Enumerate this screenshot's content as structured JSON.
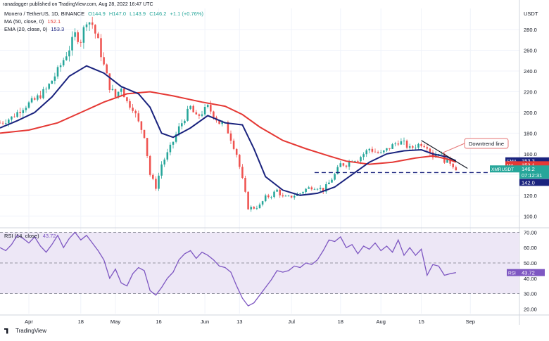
{
  "attribution": "ranadagger published on TradingView.com, Aug 28, 2022 16:47 UTC",
  "legend": {
    "symbol": "Monero / TetherUS, 1D, BINANCE",
    "o": "O144.9",
    "h": "H147.0",
    "l": "L143.9",
    "c": "C146.2",
    "chg": "+1.1 (+0.76%)",
    "ma_label": "MA (50, close, 0)",
    "ma_value": "152.1",
    "ema_label": "EMA (20, close, 0)",
    "ema_value": "153.3",
    "rsi_label": "RSI (14, close)",
    "rsi_value": "43.72"
  },
  "footer_logo": "TradingView",
  "colors": {
    "up": "#26a69a",
    "down": "#ef5350",
    "ma": "#e53935",
    "ema": "#1a237e",
    "rsi": "#7e57c2",
    "rsi_band": "#ede7f6",
    "trendline": "#131722",
    "support": "#1a237e",
    "callout": "#e57373"
  },
  "chart_data": [
    {
      "type": "candlestick",
      "title": "Monero / TetherUS, 1D, BINANCE",
      "currency": "USDT",
      "ylim": [
        90,
        295
      ],
      "yticks": [
        100,
        120,
        140,
        160,
        180,
        200,
        220,
        240,
        260,
        280
      ],
      "x_labels": [
        {
          "label": "Apr",
          "day": 10
        },
        {
          "label": "18",
          "day": 28
        },
        {
          "label": "May",
          "day": 40
        },
        {
          "label": "16",
          "day": 55
        },
        {
          "label": "Jun",
          "day": 71
        },
        {
          "label": "13",
          "day": 83
        },
        {
          "label": "Jul",
          "day": 101
        },
        {
          "label": "18",
          "day": 118
        },
        {
          "label": "Aug",
          "day": 132
        },
        {
          "label": "15",
          "day": 146
        },
        {
          "label": "Sep",
          "day": 163
        }
      ],
      "x_range": [
        0,
        180
      ],
      "series": [
        {
          "name": "MA (50, close, 0)",
          "line": [
            [
              0,
              180
            ],
            [
              10,
              183
            ],
            [
              20,
              190
            ],
            [
              28,
              200
            ],
            [
              36,
              210
            ],
            [
              44,
              218
            ],
            [
              52,
              220
            ],
            [
              60,
              216
            ],
            [
              70,
              210
            ],
            [
              78,
              206
            ],
            [
              84,
              198
            ],
            [
              90,
              186
            ],
            [
              98,
              173
            ],
            [
              106,
              165
            ],
            [
              114,
              158
            ],
            [
              120,
              153
            ],
            [
              128,
              150
            ],
            [
              136,
              152
            ],
            [
              144,
              156
            ],
            [
              150,
              158
            ],
            [
              155,
              155
            ],
            [
              158,
              152.1
            ]
          ]
        },
        {
          "name": "EMA (20, close, 0)",
          "line": [
            [
              0,
              185
            ],
            [
              6,
              192
            ],
            [
              12,
              200
            ],
            [
              18,
              215
            ],
            [
              24,
              235
            ],
            [
              30,
              245
            ],
            [
              36,
              238
            ],
            [
              42,
              225
            ],
            [
              48,
              218
            ],
            [
              52,
              205
            ],
            [
              56,
              180
            ],
            [
              60,
              176
            ],
            [
              66,
              185
            ],
            [
              72,
              197
            ],
            [
              78,
              190
            ],
            [
              84,
              188
            ],
            [
              88,
              165
            ],
            [
              92,
              138
            ],
            [
              98,
              125
            ],
            [
              104,
              120
            ],
            [
              110,
              122
            ],
            [
              116,
              128
            ],
            [
              122,
              140
            ],
            [
              128,
              152
            ],
            [
              134,
              160
            ],
            [
              140,
              163
            ],
            [
              146,
              164
            ],
            [
              150,
              160
            ],
            [
              155,
              157
            ],
            [
              158,
              153.3
            ]
          ]
        }
      ],
      "ohlc_pivots": [
        [
          0,
          190
        ],
        [
          4,
          195
        ],
        [
          8,
          205
        ],
        [
          12,
          212
        ],
        [
          16,
          222
        ],
        [
          20,
          240
        ],
        [
          24,
          262
        ],
        [
          26,
          275
        ],
        [
          28,
          270
        ],
        [
          30,
          290
        ],
        [
          32,
          285
        ],
        [
          34,
          268
        ],
        [
          36,
          245
        ],
        [
          38,
          225
        ],
        [
          40,
          215
        ],
        [
          42,
          225
        ],
        [
          44,
          210
        ],
        [
          46,
          205
        ],
        [
          48,
          190
        ],
        [
          50,
          178
        ],
        [
          52,
          140
        ],
        [
          54,
          128
        ],
        [
          56,
          150
        ],
        [
          58,
          160
        ],
        [
          60,
          172
        ],
        [
          62,
          185
        ],
        [
          64,
          195
        ],
        [
          66,
          205
        ],
        [
          68,
          195
        ],
        [
          70,
          200
        ],
        [
          72,
          205
        ],
        [
          74,
          198
        ],
        [
          76,
          190
        ],
        [
          78,
          188
        ],
        [
          80,
          175
        ],
        [
          82,
          160
        ],
        [
          84,
          135
        ],
        [
          86,
          108
        ],
        [
          88,
          108
        ],
        [
          90,
          110
        ],
        [
          92,
          118
        ],
        [
          94,
          120
        ],
        [
          96,
          125
        ],
        [
          98,
          118
        ],
        [
          100,
          118
        ],
        [
          102,
          120
        ],
        [
          104,
          122
        ],
        [
          106,
          126
        ],
        [
          108,
          128
        ],
        [
          110,
          128
        ],
        [
          112,
          125
        ],
        [
          114,
          132
        ],
        [
          116,
          140
        ],
        [
          118,
          150
        ],
        [
          120,
          150
        ],
        [
          122,
          155
        ],
        [
          124,
          155
        ],
        [
          126,
          160
        ],
        [
          128,
          165
        ],
        [
          130,
          162
        ],
        [
          132,
          160
        ],
        [
          134,
          164
        ],
        [
          136,
          168
        ],
        [
          138,
          172
        ],
        [
          140,
          170
        ],
        [
          142,
          165
        ],
        [
          144,
          168
        ],
        [
          146,
          170
        ],
        [
          148,
          168
        ],
        [
          150,
          158
        ],
        [
          152,
          162
        ],
        [
          154,
          154
        ],
        [
          156,
          152
        ],
        [
          158,
          146.2
        ]
      ],
      "annotations": [
        {
          "type": "trendline",
          "label": "Downtrend line",
          "from": [
            146,
            173
          ],
          "to": [
            162,
            146
          ]
        },
        {
          "type": "support",
          "value": 142.0,
          "from_day": 109,
          "to_day": 170
        }
      ],
      "price_tags": [
        {
          "name": "EMA",
          "value": "153.3",
          "color": "#1a237e",
          "y": 153.3
        },
        {
          "name": "MA",
          "value": "152.1",
          "color": "#e53935",
          "y": 149.5
        },
        {
          "name": "XMRUSDT",
          "value": "146.2",
          "color": "#26a69a",
          "y": 145.5
        },
        {
          "name": "time",
          "value": "07:12:31",
          "color": "#26a69a",
          "y": 139.5
        },
        {
          "name": "support",
          "value": "142.0",
          "color": "#1a237e",
          "y": 132.5
        }
      ]
    },
    {
      "type": "line",
      "title": "RSI (14, close)",
      "ylim": [
        17,
        72
      ],
      "yticks": [
        20,
        30,
        40,
        50,
        60,
        70
      ],
      "bands": {
        "upper": 70,
        "middle": 50,
        "lower": 30
      },
      "series": [
        {
          "name": "RSI",
          "values": [
            [
              0,
              60
            ],
            [
              2,
              58
            ],
            [
              4,
              62
            ],
            [
              6,
              68
            ],
            [
              8,
              66
            ],
            [
              10,
              63
            ],
            [
              12,
              67
            ],
            [
              14,
              61
            ],
            [
              16,
              57
            ],
            [
              18,
              62
            ],
            [
              20,
              68
            ],
            [
              22,
              60
            ],
            [
              24,
              66
            ],
            [
              26,
              70
            ],
            [
              28,
              65
            ],
            [
              30,
              68
            ],
            [
              32,
              63
            ],
            [
              34,
              58
            ],
            [
              36,
              52
            ],
            [
              38,
              40
            ],
            [
              40,
              46
            ],
            [
              42,
              37
            ],
            [
              44,
              35
            ],
            [
              46,
              43
            ],
            [
              48,
              47
            ],
            [
              50,
              45
            ],
            [
              52,
              32
            ],
            [
              54,
              29
            ],
            [
              56,
              34
            ],
            [
              58,
              40
            ],
            [
              60,
              44
            ],
            [
              62,
              52
            ],
            [
              64,
              56
            ],
            [
              66,
              58
            ],
            [
              68,
              53
            ],
            [
              70,
              57
            ],
            [
              72,
              55
            ],
            [
              74,
              52
            ],
            [
              76,
              48
            ],
            [
              78,
              47
            ],
            [
              80,
              44
            ],
            [
              82,
              35
            ],
            [
              84,
              27
            ],
            [
              86,
              22
            ],
            [
              88,
              24
            ],
            [
              90,
              29
            ],
            [
              92,
              34
            ],
            [
              94,
              39
            ],
            [
              96,
              45
            ],
            [
              98,
              44
            ],
            [
              100,
              45
            ],
            [
              102,
              48
            ],
            [
              104,
              47
            ],
            [
              106,
              50
            ],
            [
              108,
              49
            ],
            [
              110,
              52
            ],
            [
              112,
              58
            ],
            [
              114,
              65
            ],
            [
              116,
              64
            ],
            [
              118,
              67
            ],
            [
              120,
              60
            ],
            [
              122,
              62
            ],
            [
              124,
              56
            ],
            [
              126,
              61
            ],
            [
              128,
              59
            ],
            [
              130,
              63
            ],
            [
              132,
              58
            ],
            [
              134,
              61
            ],
            [
              136,
              57
            ],
            [
              138,
              65
            ],
            [
              140,
              55
            ],
            [
              142,
              60
            ],
            [
              144,
              55
            ],
            [
              146,
              59
            ],
            [
              148,
              42
            ],
            [
              150,
              49
            ],
            [
              152,
              48
            ],
            [
              154,
              42
            ],
            [
              156,
              43
            ],
            [
              158,
              43.72
            ]
          ]
        }
      ],
      "price_tags": [
        {
          "name": "RSI",
          "value": "43.72",
          "color": "#7e57c2"
        }
      ]
    }
  ]
}
